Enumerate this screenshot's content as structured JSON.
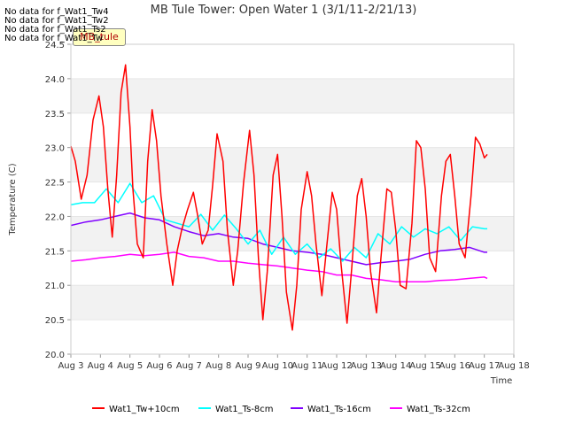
{
  "chart_data": {
    "type": "line",
    "title": "MB Tule Tower: Open Water 1 (3/1/11-2/21/13)",
    "xlabel": "Time",
    "ylabel": "Temperature (C)",
    "ylim": [
      20.0,
      24.5
    ],
    "xlim": [
      0,
      15
    ],
    "x_tick_labels": [
      "Aug 3",
      "Aug 4",
      "Aug 5",
      "Aug 6",
      "Aug 7",
      "Aug 8",
      "Aug 9",
      "Aug 10",
      "Aug 11",
      "Aug 12",
      "Aug 13",
      "Aug 14",
      "Aug 15",
      "Aug 16",
      "Aug 17",
      "Aug 18"
    ],
    "y_tick_labels": [
      "20.0",
      "20.5",
      "21.0",
      "21.5",
      "22.0",
      "22.5",
      "23.0",
      "23.5",
      "24.0",
      "24.5"
    ],
    "no_data_messages": [
      "No data for f_Wat1_Tw4",
      "No data for f_Wat1_Tw2",
      "No data for f_Wat1_Ts2",
      "No data for f_Wat1_Tw"
    ],
    "badge_label": "MB_tule",
    "legend_position": "bottom",
    "series": [
      {
        "name": "Wat1_Tw+10cm",
        "color": "#ff0000",
        "x": [
          0.0,
          0.15,
          0.35,
          0.55,
          0.75,
          0.95,
          1.1,
          1.25,
          1.4,
          1.55,
          1.7,
          1.85,
          2.0,
          2.1,
          2.25,
          2.45,
          2.6,
          2.75,
          2.9,
          3.05,
          3.25,
          3.45,
          3.6,
          3.75,
          3.95,
          4.15,
          4.3,
          4.45,
          4.65,
          4.8,
          4.95,
          5.15,
          5.3,
          5.5,
          5.65,
          5.85,
          6.05,
          6.2,
          6.35,
          6.5,
          6.65,
          6.85,
          7.0,
          7.15,
          7.3,
          7.5,
          7.65,
          7.8,
          8.0,
          8.15,
          8.3,
          8.5,
          8.65,
          8.85,
          9.0,
          9.15,
          9.35,
          9.5,
          9.7,
          9.85,
          10.0,
          10.15,
          10.35,
          10.5,
          10.7,
          10.85,
          11.0,
          11.15,
          11.35,
          11.55,
          11.7,
          11.85,
          12.0,
          12.15,
          12.35,
          12.55,
          12.7,
          12.85,
          13.0,
          13.15,
          13.35,
          13.55,
          13.7,
          13.85,
          14.0,
          14.1
        ],
        "values": [
          23.02,
          22.8,
          22.25,
          22.6,
          23.4,
          23.75,
          23.3,
          22.4,
          21.7,
          22.6,
          23.8,
          24.2,
          23.3,
          22.4,
          21.6,
          21.4,
          22.8,
          23.55,
          23.1,
          22.3,
          21.6,
          21.0,
          21.5,
          21.8,
          22.1,
          22.35,
          22.0,
          21.6,
          21.8,
          22.45,
          23.2,
          22.8,
          21.8,
          21.0,
          21.5,
          22.5,
          23.25,
          22.6,
          21.4,
          20.5,
          21.2,
          22.6,
          22.9,
          22.0,
          20.9,
          20.35,
          21.0,
          22.1,
          22.65,
          22.3,
          21.6,
          20.85,
          21.5,
          22.35,
          22.1,
          21.3,
          20.45,
          21.2,
          22.3,
          22.55,
          22.0,
          21.2,
          20.6,
          21.4,
          22.4,
          22.35,
          21.8,
          21.0,
          20.95,
          21.9,
          23.1,
          23.0,
          22.4,
          21.4,
          21.2,
          22.3,
          22.8,
          22.9,
          22.3,
          21.6,
          21.4,
          22.3,
          23.15,
          23.05,
          22.85,
          22.9
        ]
      },
      {
        "name": "Wat1_Ts-8cm",
        "color": "#00ffff",
        "x": [
          0.0,
          0.4,
          0.8,
          1.2,
          1.6,
          2.0,
          2.4,
          2.8,
          3.2,
          3.6,
          4.0,
          4.4,
          4.8,
          5.2,
          5.6,
          6.0,
          6.4,
          6.8,
          7.2,
          7.6,
          8.0,
          8.4,
          8.8,
          9.2,
          9.6,
          10.0,
          10.4,
          10.8,
          11.2,
          11.6,
          12.0,
          12.4,
          12.8,
          13.2,
          13.6,
          14.0,
          14.1
        ],
        "values": [
          22.17,
          22.2,
          22.2,
          22.4,
          22.2,
          22.48,
          22.2,
          22.3,
          21.95,
          21.9,
          21.85,
          22.03,
          21.8,
          22.02,
          21.82,
          21.6,
          21.8,
          21.45,
          21.7,
          21.45,
          21.6,
          21.4,
          21.53,
          21.35,
          21.55,
          21.4,
          21.75,
          21.6,
          21.85,
          21.7,
          21.82,
          21.75,
          21.85,
          21.65,
          21.85,
          21.82,
          21.82
        ]
      },
      {
        "name": "Wat1_Ts-16cm",
        "color": "#8000ff",
        "x": [
          0.0,
          0.5,
          1.0,
          1.5,
          2.0,
          2.5,
          3.0,
          3.5,
          4.0,
          4.5,
          5.0,
          5.5,
          6.0,
          6.5,
          7.0,
          7.5,
          8.0,
          8.5,
          9.0,
          9.5,
          10.0,
          10.5,
          11.0,
          11.5,
          12.0,
          12.5,
          13.0,
          13.5,
          14.0,
          14.1
        ],
        "values": [
          21.87,
          21.92,
          21.95,
          22.0,
          22.05,
          21.98,
          21.95,
          21.85,
          21.78,
          21.72,
          21.75,
          21.7,
          21.68,
          21.6,
          21.55,
          21.5,
          21.48,
          21.45,
          21.4,
          21.35,
          21.3,
          21.33,
          21.35,
          21.38,
          21.45,
          21.5,
          21.52,
          21.55,
          21.48,
          21.48
        ]
      },
      {
        "name": "Wat1_Ts-32cm",
        "color": "#ff00ff",
        "x": [
          0.0,
          0.5,
          1.0,
          1.5,
          2.0,
          2.5,
          3.0,
          3.5,
          4.0,
          4.5,
          5.0,
          5.5,
          6.0,
          6.5,
          7.0,
          7.5,
          8.0,
          8.5,
          9.0,
          9.5,
          10.0,
          10.5,
          11.0,
          11.5,
          12.0,
          12.5,
          13.0,
          13.5,
          14.0,
          14.1
        ],
        "values": [
          21.35,
          21.37,
          21.4,
          21.42,
          21.45,
          21.43,
          21.45,
          21.48,
          21.42,
          21.4,
          21.35,
          21.35,
          21.32,
          21.3,
          21.28,
          21.25,
          21.22,
          21.2,
          21.15,
          21.15,
          21.1,
          21.08,
          21.05,
          21.05,
          21.05,
          21.07,
          21.08,
          21.1,
          21.12,
          21.1
        ]
      }
    ]
  }
}
